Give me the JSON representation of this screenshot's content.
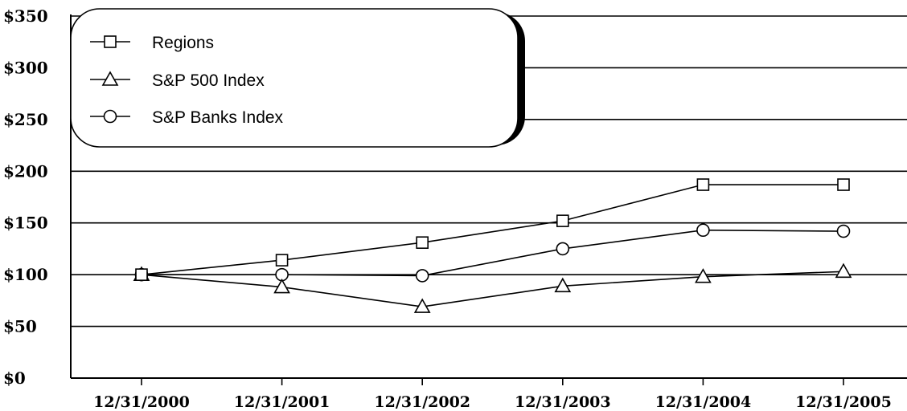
{
  "chart_data": {
    "type": "line",
    "categories": [
      "12/31/2000",
      "12/31/2001",
      "12/31/2002",
      "12/31/2003",
      "12/31/2004",
      "12/31/2005"
    ],
    "y_ticks": [
      "$0",
      "$50",
      "$100",
      "$150",
      "$200",
      "$250",
      "$300",
      "$350"
    ],
    "ylim": [
      0,
      350
    ],
    "grid": true,
    "legend_position": "top-left",
    "series": [
      {
        "name": "Regions",
        "marker": "square",
        "values": [
          100,
          114,
          131,
          152,
          187,
          187
        ]
      },
      {
        "name": "S&P 500 Index",
        "marker": "triangle",
        "values": [
          100,
          88,
          69,
          89,
          98,
          103
        ]
      },
      {
        "name": "S&P Banks Index",
        "marker": "circle",
        "values": [
          100,
          100,
          99,
          125,
          143,
          142
        ]
      }
    ]
  }
}
